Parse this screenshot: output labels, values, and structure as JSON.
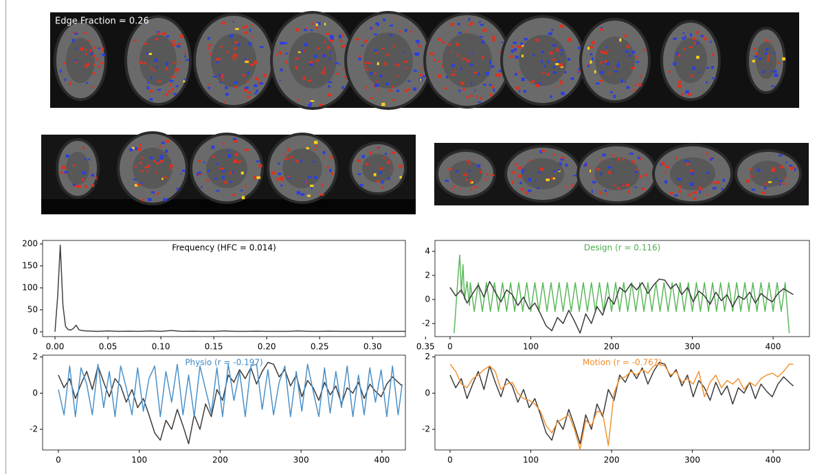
{
  "brain_panels": {
    "axial_label": "Edge Fraction = 0.26"
  },
  "chart_data": [
    {
      "type": "line",
      "title": "Frequency (HFC = 0.014)",
      "title_color": "#000000",
      "x": [
        0,
        0.0025,
        0.005,
        0.0075,
        0.01,
        0.0125,
        0.015,
        0.0175,
        0.02,
        0.0225,
        0.025,
        0.03,
        0.04,
        0.05,
        0.06,
        0.07,
        0.08,
        0.09,
        0.1,
        0.11,
        0.12,
        0.13,
        0.14,
        0.15,
        0.16,
        0.17,
        0.18,
        0.19,
        0.2,
        0.21,
        0.22,
        0.23,
        0.24,
        0.25,
        0.26,
        0.27,
        0.28,
        0.29,
        0.3,
        0.31,
        0.32,
        0.33,
        0.333
      ],
      "series": [
        {
          "color": "#404040",
          "values": [
            0,
            80,
            197,
            60,
            12,
            5,
            4,
            8,
            15,
            5,
            3,
            2,
            1,
            2,
            1,
            1.5,
            1,
            2,
            1,
            3,
            1,
            1.5,
            1,
            1,
            2,
            1,
            1,
            1.5,
            1,
            1,
            1,
            2,
            1,
            1,
            1.5,
            1,
            1,
            1,
            1,
            1,
            1,
            1,
            0.5
          ]
        }
      ],
      "xlim": [
        -0.0117,
        0.331
      ],
      "ylim": [
        -10.9,
        207.8
      ],
      "xticks": [
        {
          "value": 0,
          "label": "0.00"
        },
        0.05,
        {
          "value": 0.1,
          "label": "0.10"
        },
        0.15,
        {
          "value": 0.2,
          "label": "0.20"
        },
        0.25,
        {
          "value": 0.3,
          "label": "0.30"
        },
        0.35
      ],
      "yticks": [
        0,
        50,
        100,
        150,
        200
      ]
    },
    {
      "type": "line",
      "title": "Design (r = 0.116)",
      "title_color": "#4daf4a",
      "x": [
        0,
        7,
        14,
        21,
        28,
        35,
        42,
        49,
        56,
        63,
        70,
        77,
        84,
        91,
        98,
        105,
        112,
        119,
        126,
        133,
        140,
        147,
        154,
        161,
        168,
        175,
        182,
        189,
        196,
        203,
        210,
        217,
        224,
        231,
        238,
        245,
        252,
        259,
        266,
        273,
        280,
        287,
        294,
        301,
        308,
        315,
        322,
        329,
        336,
        343,
        350,
        357,
        364,
        371,
        378,
        385,
        392,
        399,
        406,
        413,
        420,
        425
      ],
      "series": [
        {
          "color": "#5cb85c",
          "x": [
            5,
            10,
            12,
            14,
            16,
            18,
            21,
            24,
            25,
            30,
            35,
            40,
            45,
            50,
            55,
            60,
            65,
            70,
            75,
            80,
            85,
            90,
            95,
            100,
            105,
            110,
            115,
            120,
            125,
            130,
            135,
            140,
            145,
            150,
            155,
            160,
            165,
            170,
            175,
            180,
            185,
            190,
            195,
            200,
            205,
            210,
            215,
            220,
            225,
            230,
            235,
            240,
            245,
            250,
            255,
            260,
            265,
            270,
            275,
            280,
            285,
            290,
            295,
            300,
            305,
            310,
            315,
            320,
            325,
            330,
            335,
            340,
            345,
            350,
            355,
            360,
            365,
            370,
            375,
            380,
            385,
            390,
            395,
            400,
            405,
            410,
            415,
            420
          ],
          "values": [
            -2.8,
            2.0,
            3.7,
            0.5,
            2.9,
            0,
            1.5,
            -0.5,
            1.4,
            -1,
            1.4,
            -1,
            1.4,
            -1,
            1.4,
            -1,
            1.4,
            -1,
            1.4,
            -1,
            1.4,
            -1,
            1.4,
            -1,
            1.4,
            -1,
            1.4,
            -1,
            1.4,
            -1,
            1.4,
            -1,
            1.4,
            -1,
            1.4,
            -1,
            1.4,
            -1,
            1.4,
            -1,
            1.4,
            -1,
            1.4,
            -1,
            1.4,
            -1,
            1.4,
            -1,
            1.4,
            -1,
            1.4,
            -1,
            1.4,
            -1,
            1.4,
            -1,
            1.4,
            -1,
            1.4,
            -1,
            1.4,
            -1,
            1.4,
            -1,
            1.4,
            -1,
            1.4,
            -1,
            1.4,
            -1,
            1.4,
            -1,
            1.4,
            -1,
            1.4,
            -1,
            1.4,
            -1,
            1.4,
            -1,
            1.4,
            -1,
            1.4,
            -1,
            1.4,
            -1,
            1.4,
            -2.8
          ]
        },
        {
          "color": "#3a3a3a",
          "values": [
            1,
            0.3,
            0.8,
            -0.3,
            0.5,
            1.2,
            0.2,
            1.5,
            0.6,
            -0.2,
            0.8,
            0.4,
            -0.5,
            0.2,
            -0.8,
            -0.3,
            -1.2,
            -2.2,
            -2.6,
            -1.5,
            -2,
            -0.9,
            -1.8,
            -2.8,
            -1.2,
            -2,
            -0.6,
            -1.3,
            0.2,
            -0.4,
            1,
            0.6,
            1.3,
            0.8,
            1.4,
            0.5,
            1.2,
            1.7,
            1.6,
            0.9,
            1.3,
            0.4,
            1,
            -0.2,
            0.7,
            0.3,
            -0.4,
            0.6,
            -0.1,
            0.4,
            -0.6,
            0.3,
            0,
            0.6,
            -0.3,
            0.5,
            0.1,
            -0.2,
            0.5,
            0.9,
            0.6,
            0.4
          ]
        }
      ],
      "xlim": [
        -18.7,
        445
      ],
      "ylim": [
        -3.09,
        4.91
      ],
      "xticks": [
        0,
        100,
        200,
        300,
        400
      ],
      "yticks": [
        -2,
        0,
        2,
        4
      ]
    },
    {
      "type": "line",
      "title": "Physio (r = -0.197)",
      "title_color": "#3a87c8",
      "x": [
        0,
        7,
        14,
        21,
        28,
        35,
        42,
        49,
        56,
        63,
        70,
        77,
        84,
        91,
        98,
        105,
        112,
        119,
        126,
        133,
        140,
        147,
        154,
        161,
        168,
        175,
        182,
        189,
        196,
        203,
        210,
        217,
        224,
        231,
        238,
        245,
        252,
        259,
        266,
        273,
        280,
        287,
        294,
        301,
        308,
        315,
        322,
        329,
        336,
        343,
        350,
        357,
        364,
        371,
        378,
        385,
        392,
        399,
        406,
        413,
        420,
        425
      ],
      "series": [
        {
          "color": "#3a3a3a",
          "values": [
            1,
            0.3,
            0.8,
            -0.3,
            0.5,
            1.2,
            0.2,
            1.5,
            0.6,
            -0.2,
            0.8,
            0.4,
            -0.5,
            0.2,
            -0.8,
            -0.3,
            -1.2,
            -2.2,
            -2.6,
            -1.5,
            -2,
            -0.9,
            -1.8,
            -2.8,
            -1.2,
            -2,
            -0.6,
            -1.3,
            0.2,
            -0.4,
            1,
            0.6,
            1.3,
            0.8,
            1.4,
            0.5,
            1.2,
            1.7,
            1.6,
            0.9,
            1.3,
            0.4,
            1,
            -0.2,
            0.7,
            0.3,
            -0.4,
            0.6,
            -0.1,
            0.4,
            -0.6,
            0.3,
            0,
            0.6,
            -0.3,
            0.5,
            0.1,
            -0.2,
            0.5,
            0.9,
            0.6,
            0.4
          ]
        },
        {
          "color": "#4a90c8",
          "values": [
            0.2,
            -1.2,
            1.5,
            -1.3,
            1.4,
            0.5,
            -1.2,
            1.6,
            -0.8,
            1.2,
            -1.3,
            1.5,
            0.3,
            -1.2,
            1.4,
            -1,
            0.8,
            1.5,
            -1.3,
            1.2,
            -0.5,
            1.6,
            -1.2,
            1,
            -1.3,
            1.5,
            0.2,
            -1.1,
            1.4,
            -1.3,
            1.6,
            -0.4,
            1.2,
            -1.3,
            1.5,
            1.6,
            -0.9,
            1.3,
            -1.2,
            0.6,
            1.5,
            -1.3,
            1.2,
            -1,
            1.6,
            0.1,
            -1.3,
            1.4,
            -1.1,
            1.2,
            -0.8,
            1.5,
            -1.3,
            1,
            -1.2,
            1.4,
            -0.5,
            1.3,
            -1.3,
            1.5,
            -1.2,
            0.5
          ]
        }
      ],
      "xlim": [
        -19.5,
        429
      ],
      "ylim": [
        -3.14,
        2.1
      ],
      "xticks": [
        0,
        100,
        200,
        300,
        400
      ],
      "yticks": [
        -2,
        0,
        2
      ]
    },
    {
      "type": "line",
      "title": "Motion (r = -0.767)",
      "title_color": "#f08a24",
      "x": [
        0,
        7,
        14,
        21,
        28,
        35,
        42,
        49,
        56,
        63,
        70,
        77,
        84,
        91,
        98,
        105,
        112,
        119,
        126,
        133,
        140,
        147,
        154,
        161,
        168,
        175,
        182,
        189,
        196,
        203,
        210,
        217,
        224,
        231,
        238,
        245,
        252,
        259,
        266,
        273,
        280,
        287,
        294,
        301,
        308,
        315,
        322,
        329,
        336,
        343,
        350,
        357,
        364,
        371,
        378,
        385,
        392,
        399,
        406,
        413,
        420,
        425
      ],
      "series": [
        {
          "color": "#3a3a3a",
          "values": [
            1,
            0.3,
            0.8,
            -0.3,
            0.5,
            1.2,
            0.2,
            1.5,
            0.6,
            -0.2,
            0.8,
            0.4,
            -0.5,
            0.2,
            -0.8,
            -0.3,
            -1.2,
            -2.2,
            -2.6,
            -1.5,
            -2,
            -0.9,
            -1.8,
            -2.8,
            -1.2,
            -2,
            -0.6,
            -1.3,
            0.2,
            -0.4,
            1,
            0.6,
            1.3,
            0.8,
            1.4,
            0.5,
            1.2,
            1.7,
            1.6,
            0.9,
            1.3,
            0.4,
            1,
            -0.2,
            0.7,
            0.3,
            -0.4,
            0.6,
            -0.1,
            0.4,
            -0.6,
            0.3,
            0,
            0.6,
            -0.3,
            0.5,
            0.1,
            -0.2,
            0.5,
            0.9,
            0.6,
            0.4
          ]
        },
        {
          "color": "#f39232",
          "values": [
            1.6,
            1.2,
            0.5,
            0.3,
            0.8,
            1,
            1.3,
            1.5,
            1.2,
            0.2,
            0.5,
            0.6,
            0,
            -0.3,
            -0.4,
            -0.6,
            -1,
            -1.8,
            -2.2,
            -1.6,
            -1.4,
            -1.2,
            -2,
            -3.1,
            -1.5,
            -1.8,
            -1,
            -1.1,
            -2.9,
            0,
            0.8,
            0.9,
            1.2,
            1,
            1.3,
            1.1,
            1.5,
            1.6,
            1.5,
            1,
            1.2,
            0.6,
            0.8,
            0.5,
            1.2,
            -0.2,
            0.6,
            1,
            0.3,
            0.7,
            0.5,
            0.8,
            0.2,
            0.6,
            0.4,
            0.8,
            1,
            1.1,
            0.9,
            1.2,
            1.6,
            1.6
          ]
        }
      ],
      "xlim": [
        -18.7,
        445
      ],
      "ylim": [
        -3.14,
        2.1
      ],
      "xticks": [
        0,
        100,
        200,
        300,
        400
      ],
      "yticks": [
        -2,
        0,
        2
      ]
    }
  ]
}
